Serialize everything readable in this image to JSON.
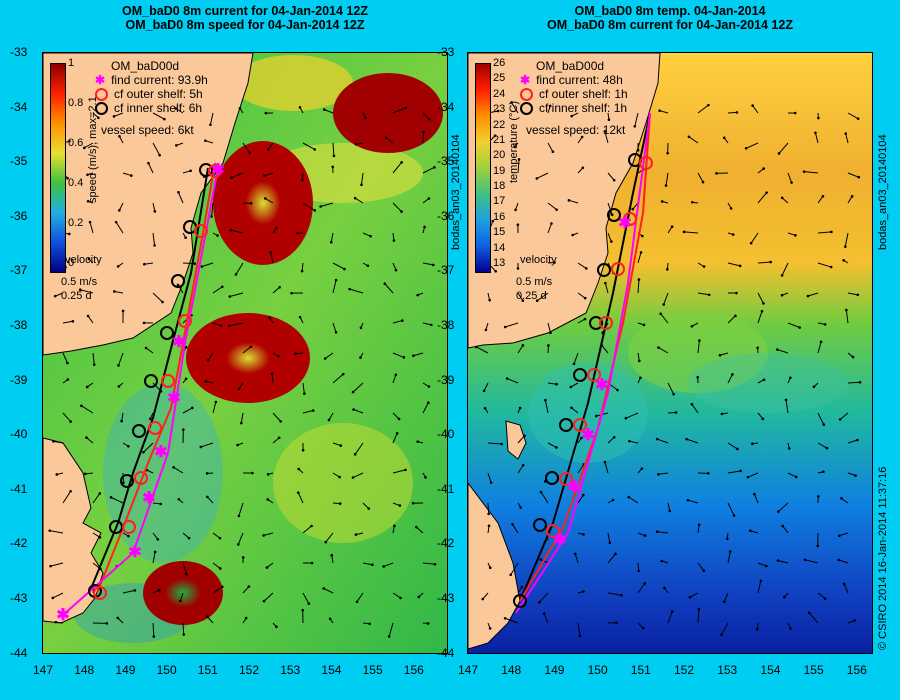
{
  "left": {
    "title1": "OM_baD0 8m current for 04-Jan-2014 12Z",
    "title2": "OM_baD0 8m speed for 04-Jan-2014 12Z",
    "model": "OM_baD00d",
    "legend": [
      {
        "label": "find current: 93.9h",
        "marker": "star",
        "color": "#ff00ff"
      },
      {
        "label": "cf outer shelf: 5h",
        "marker": "circle",
        "color": "#ff2020"
      },
      {
        "label": "cf inner shelf: 6h",
        "marker": "circle",
        "color": "#000000"
      }
    ],
    "vessel": "vessel speed: 6kt",
    "colorbar_label": "speed (m/s), max=2.1",
    "colorbar_ticks": [
      "1",
      "0.8",
      "0.6",
      "0.4",
      "0.2",
      "0"
    ],
    "velocity_title": "velocity",
    "velocity_scale": "0.5 m/s",
    "velocity_time": "0.25 d",
    "side_text": "bodas_an03_20140104"
  },
  "right": {
    "title1": "OM_baD0 8m temp. 04-Jan-2014",
    "title2": "OM_baD0 8m current for 04-Jan-2014 12Z",
    "model": "OM_baD00d",
    "legend": [
      {
        "label": "find current: 48h",
        "marker": "star",
        "color": "#ff00ff"
      },
      {
        "label": "cf outer shelf: 1h",
        "marker": "circle",
        "color": "#ff2020"
      },
      {
        "label": "cf inner shelf: 1h",
        "marker": "circle",
        "color": "#000000"
      }
    ],
    "vessel": "vessel speed: 12kt",
    "colorbar_label": "temperature (°C)",
    "colorbar_ticks": [
      "26",
      "25",
      "24",
      "23",
      "22",
      "21",
      "20",
      "19",
      "18",
      "17",
      "16",
      "15",
      "14",
      "13"
    ],
    "velocity_title": "velocity",
    "velocity_scale": "0.5 m/s",
    "velocity_time": "0.25 d",
    "side_text": "bodas_an03_20140104",
    "stamp": "© CSIRO 2014   16-Jan-2014 11:37:16"
  },
  "axes": {
    "lat_ticks": [
      "-33",
      "-34",
      "-35",
      "-36",
      "-37",
      "-38",
      "-39",
      "-40",
      "-41",
      "-42",
      "-43",
      "-44"
    ],
    "lon_ticks": [
      "147",
      "148",
      "149",
      "150",
      "151",
      "152",
      "153",
      "154",
      "155",
      "156"
    ]
  },
  "colors": {
    "land": "#fbc89a",
    "frame": "#00cdf2",
    "track_black": "#000000",
    "track_red": "#ff2020",
    "track_magenta": "#ff00ff"
  }
}
